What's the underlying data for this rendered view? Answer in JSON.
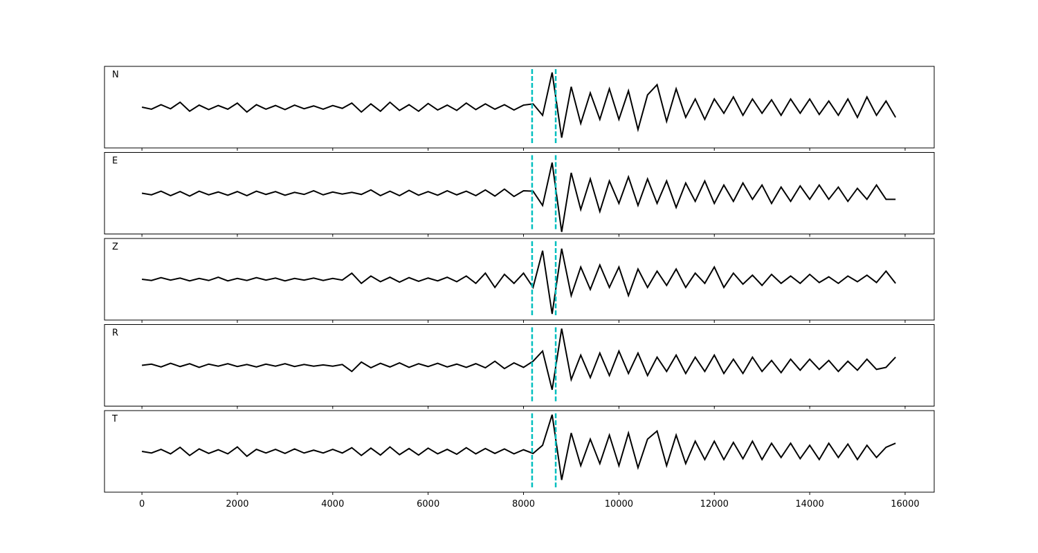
{
  "chart_data": {
    "type": "line",
    "layout": "stacked",
    "x": [
      0,
      200,
      400,
      600,
      800,
      1000,
      1200,
      1400,
      1600,
      1800,
      2000,
      2200,
      2400,
      2600,
      2800,
      3000,
      3200,
      3400,
      3600,
      3800,
      4000,
      4200,
      4400,
      4600,
      4800,
      5000,
      5200,
      5400,
      5600,
      5800,
      6000,
      6200,
      6400,
      6600,
      6800,
      7000,
      7200,
      7400,
      7600,
      7800,
      8000,
      8200,
      8400,
      8600,
      8800,
      9000,
      9200,
      9400,
      9600,
      9800,
      10000,
      10200,
      10400,
      10600,
      10800,
      11000,
      11200,
      11400,
      11600,
      11800,
      12000,
      12200,
      12400,
      12600,
      12800,
      13000,
      13200,
      13400,
      13600,
      13800,
      14000,
      14200,
      14400,
      14600,
      14800,
      15000,
      15200,
      15400,
      15600,
      15800
    ],
    "series": [
      {
        "name": "N",
        "color": "#000000",
        "values": [
          0,
          -0.05,
          0.06,
          -0.04,
          0.12,
          -0.1,
          0.05,
          -0.06,
          0.04,
          -0.05,
          0.1,
          -0.12,
          0.06,
          -0.05,
          0.04,
          -0.06,
          0.05,
          -0.04,
          0.03,
          -0.05,
          0.04,
          -0.03,
          0.1,
          -0.12,
          0.08,
          -0.1,
          0.12,
          -0.08,
          0.06,
          -0.1,
          0.09,
          -0.07,
          0.05,
          -0.08,
          0.1,
          -0.06,
          0.08,
          -0.05,
          0.06,
          -0.07,
          0.05,
          0.08,
          -0.2,
          0.85,
          -0.75,
          0.5,
          -0.4,
          0.35,
          -0.3,
          0.45,
          -0.3,
          0.4,
          -0.55,
          0.3,
          0.55,
          -0.35,
          0.45,
          -0.25,
          0.2,
          -0.3,
          0.2,
          -0.15,
          0.25,
          -0.2,
          0.2,
          -0.15,
          0.18,
          -0.2,
          0.2,
          -0.15,
          0.2,
          -0.18,
          0.15,
          -0.2,
          0.2,
          -0.25,
          0.25,
          -0.2,
          0.15,
          -0.25
        ]
      },
      {
        "name": "E",
        "color": "#000000",
        "values": [
          0,
          -0.04,
          0.05,
          -0.06,
          0.04,
          -0.07,
          0.05,
          -0.04,
          0.03,
          -0.05,
          0.04,
          -0.06,
          0.05,
          -0.03,
          0.04,
          -0.05,
          0.02,
          -0.03,
          0.06,
          -0.04,
          0.03,
          -0.02,
          0.02,
          -0.03,
          0.08,
          -0.06,
          0.05,
          -0.06,
          0.07,
          -0.05,
          0.04,
          -0.05,
          0.06,
          -0.04,
          0.05,
          -0.06,
          0.08,
          -0.07,
          0.1,
          -0.08,
          0.06,
          0.05,
          -0.3,
          0.75,
          -0.95,
          0.5,
          -0.4,
          0.35,
          -0.45,
          0.3,
          -0.25,
          0.4,
          -0.3,
          0.35,
          -0.25,
          0.3,
          -0.35,
          0.25,
          -0.2,
          0.3,
          -0.25,
          0.2,
          -0.2,
          0.25,
          -0.15,
          0.2,
          -0.25,
          0.15,
          -0.2,
          0.18,
          -0.15,
          0.2,
          -0.15,
          0.15,
          -0.2,
          0.12,
          -0.15,
          0.2,
          -0.15,
          -0.15
        ]
      },
      {
        "name": "Z",
        "color": "#000000",
        "values": [
          0,
          -0.03,
          0.04,
          -0.02,
          0.03,
          -0.04,
          0.02,
          -0.03,
          0.05,
          -0.04,
          0.02,
          -0.03,
          0.04,
          -0.02,
          0.03,
          -0.04,
          0.02,
          -0.02,
          0.03,
          -0.03,
          0.02,
          -0.02,
          0.15,
          -0.1,
          0.08,
          -0.06,
          0.05,
          -0.07,
          0.04,
          -0.05,
          0.03,
          -0.04,
          0.05,
          -0.06,
          0.08,
          -0.1,
          0.15,
          -0.2,
          0.12,
          -0.1,
          0.15,
          -0.2,
          0.7,
          -0.85,
          0.75,
          -0.4,
          0.3,
          -0.25,
          0.35,
          -0.2,
          0.3,
          -0.4,
          0.25,
          -0.2,
          0.2,
          -0.15,
          0.25,
          -0.2,
          0.15,
          -0.1,
          0.3,
          -0.2,
          0.15,
          -0.12,
          0.1,
          -0.15,
          0.12,
          -0.1,
          0.08,
          -0.1,
          0.12,
          -0.08,
          0.06,
          -0.1,
          0.08,
          -0.06,
          0.1,
          -0.08,
          0.2,
          -0.1
        ]
      },
      {
        "name": "R",
        "color": "#000000",
        "values": [
          0,
          0.03,
          -0.04,
          0.05,
          -0.03,
          0.04,
          -0.05,
          0.03,
          -0.02,
          0.04,
          -0.03,
          0.02,
          -0.04,
          0.03,
          -0.02,
          0.04,
          -0.03,
          0.02,
          -0.02,
          0.01,
          -0.02,
          0.02,
          -0.15,
          0.08,
          -0.06,
          0.05,
          -0.04,
          0.06,
          -0.05,
          0.04,
          -0.03,
          0.05,
          -0.04,
          0.03,
          -0.05,
          0.04,
          -0.06,
          0.1,
          -0.08,
          0.06,
          -0.05,
          0.1,
          0.35,
          -0.6,
          0.9,
          -0.35,
          0.25,
          -0.3,
          0.3,
          -0.25,
          0.35,
          -0.2,
          0.3,
          -0.25,
          0.2,
          -0.15,
          0.25,
          -0.2,
          0.2,
          -0.15,
          0.25,
          -0.2,
          0.15,
          -0.2,
          0.2,
          -0.15,
          0.12,
          -0.18,
          0.15,
          -0.12,
          0.15,
          -0.1,
          0.12,
          -0.15,
          0.1,
          -0.12,
          0.15,
          -0.1,
          -0.05,
          0.2
        ]
      },
      {
        "name": "T",
        "color": "#000000",
        "values": [
          0,
          -0.04,
          0.05,
          -0.06,
          0.1,
          -0.1,
          0.06,
          -0.05,
          0.04,
          -0.06,
          0.11,
          -0.12,
          0.05,
          -0.04,
          0.05,
          -0.05,
          0.06,
          -0.04,
          0.03,
          -0.04,
          0.05,
          -0.04,
          0.09,
          -0.1,
          0.08,
          -0.09,
          0.11,
          -0.08,
          0.07,
          -0.09,
          0.08,
          -0.06,
          0.05,
          -0.07,
          0.09,
          -0.06,
          0.07,
          -0.05,
          0.06,
          -0.06,
          0.04,
          -0.05,
          0.15,
          0.9,
          -0.7,
          0.45,
          -0.35,
          0.3,
          -0.3,
          0.4,
          -0.35,
          0.45,
          -0.4,
          0.3,
          0.5,
          -0.35,
          0.4,
          -0.3,
          0.25,
          -0.2,
          0.25,
          -0.2,
          0.22,
          -0.18,
          0.25,
          -0.2,
          0.2,
          -0.15,
          0.2,
          -0.18,
          0.15,
          -0.2,
          0.2,
          -0.15,
          0.18,
          -0.2,
          0.15,
          -0.15,
          0.1,
          0.2
        ]
      }
    ],
    "vlines": {
      "values": [
        8180,
        8675
      ],
      "color": "#00bfbf",
      "dashed": true
    },
    "xlim": [
      -785,
      16610
    ],
    "xticks": [
      0,
      2000,
      4000,
      6000,
      8000,
      10000,
      12000,
      14000,
      16000
    ],
    "ylim": [
      -1,
      1
    ]
  }
}
